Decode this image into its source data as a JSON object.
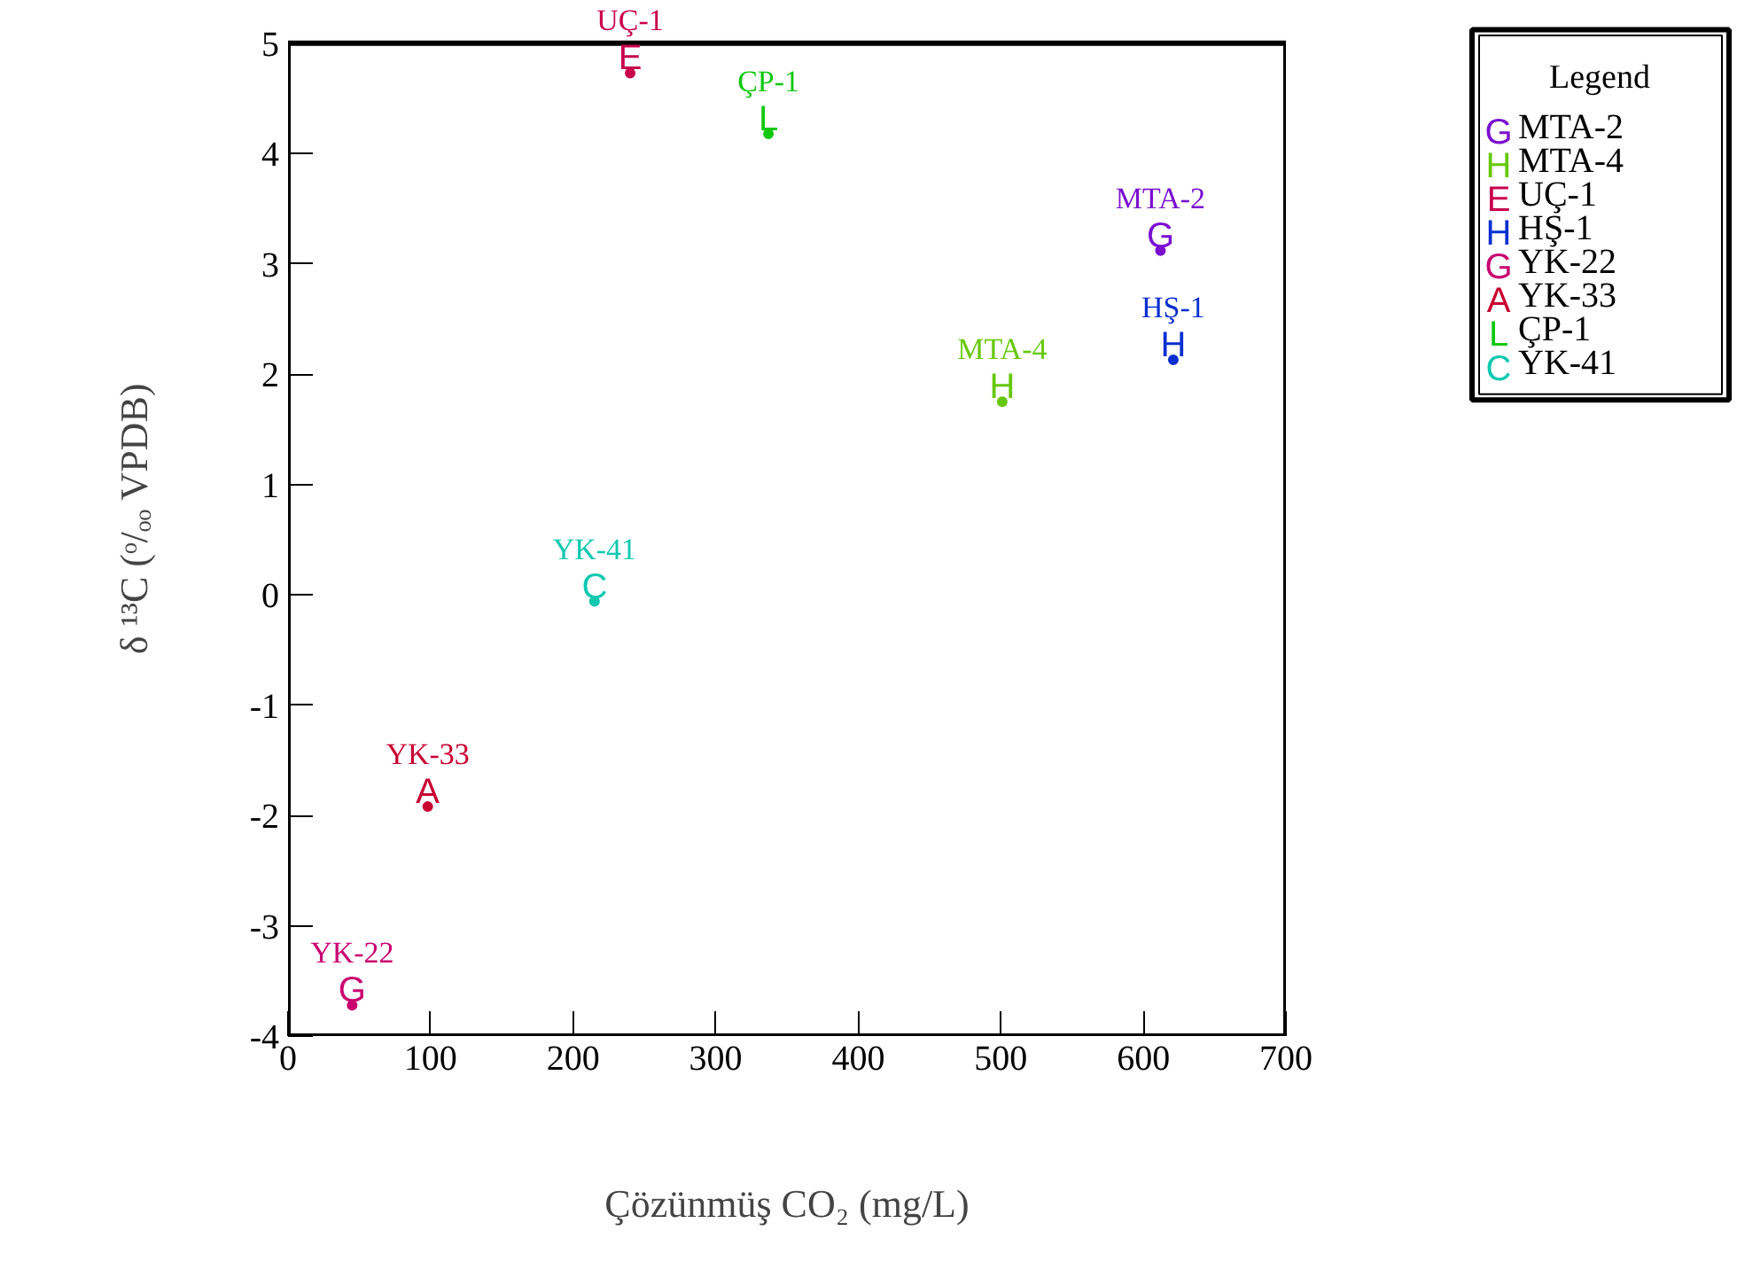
{
  "chart_data": {
    "type": "scatter",
    "xlabel": "Çözünmüş CO₂ (mg/L)",
    "ylabel": "δ ¹³C (ᵒ/ₒₒ VPDB)",
    "legend_title": "Legend",
    "legend": "right",
    "marker": "circle",
    "grid": false,
    "xlim": [
      0,
      700
    ],
    "xticks": [
      0,
      100,
      200,
      300,
      400,
      500,
      600,
      700
    ],
    "ylim": [
      -4,
      5
    ],
    "yticks": [
      -4,
      -3,
      -2,
      -1,
      0,
      1,
      2,
      3,
      4,
      5
    ],
    "series": [
      {
        "name": "MTA-2",
        "color": "#7a0fd0",
        "x": [
          612
        ],
        "values": [
          3.12
        ]
      },
      {
        "name": "MTA-4",
        "color": "#66c80a",
        "x": [
          501
        ],
        "values": [
          1.75
        ]
      },
      {
        "name": "UÇ-1",
        "color": "#c8004a",
        "x": [
          240
        ],
        "values": [
          4.73
        ]
      },
      {
        "name": "HŞ-1",
        "color": "#0a2fd0",
        "x": [
          621
        ],
        "values": [
          2.13
        ]
      },
      {
        "name": "YK-22",
        "color": "#c80070",
        "x": [
          45
        ],
        "values": [
          -3.72
        ]
      },
      {
        "name": "YK-33",
        "color": "#c80032",
        "x": [
          98
        ],
        "values": [
          -1.92
        ]
      },
      {
        "name": "ÇP-1",
        "color": "#10c810",
        "x": [
          337
        ],
        "values": [
          4.18
        ]
      },
      {
        "name": "YK-41",
        "color": "#10c8b0",
        "x": [
          215
        ],
        "values": [
          -0.06
        ]
      }
    ],
    "annotations": [
      {
        "text": "G",
        "x": 612,
        "y": 3.12
      },
      {
        "text": "H",
        "x": 501,
        "y": 1.75
      },
      {
        "text": "E",
        "x": 240,
        "y": 4.73
      },
      {
        "text": "H",
        "x": 621,
        "y": 2.13
      },
      {
        "text": "G",
        "x": 45,
        "y": -3.72
      },
      {
        "text": "A",
        "x": 98,
        "y": -1.92
      },
      {
        "text": "L",
        "x": 337,
        "y": 4.18
      },
      {
        "text": "C",
        "x": 215,
        "y": -0.06
      }
    ]
  }
}
